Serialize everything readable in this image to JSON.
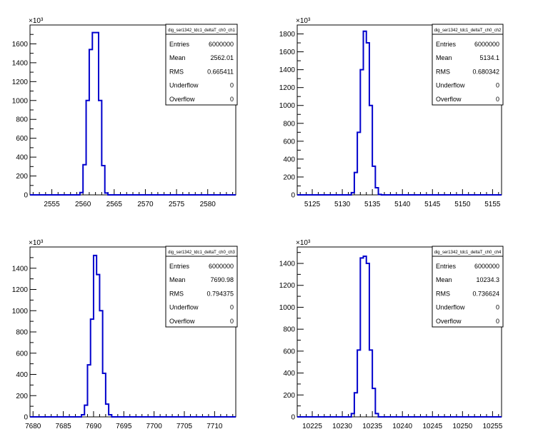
{
  "chart_data": [
    {
      "type": "histogram",
      "stats": {
        "name": "dig_ser1342_tdc1_deltaT_ch0_ch1",
        "rows": [
          {
            "label": "Entries",
            "value": "6000000"
          },
          {
            "label": "Mean",
            "value": "2562.01"
          },
          {
            "label": "RMS",
            "value": "0.665411"
          },
          {
            "label": "Underflow",
            "value": "0"
          },
          {
            "label": "Overflow",
            "value": "0"
          }
        ]
      },
      "y_exponent": "×10³",
      "xlim": [
        2551.5,
        2584.5
      ],
      "ylim": [
        0,
        1800
      ],
      "xticks": [
        2555,
        2560,
        2565,
        2570,
        2575,
        2580
      ],
      "xtick_labels": [
        "2555",
        "2560",
        "2565",
        "2570",
        "2575",
        "2580"
      ],
      "yticks": [
        0,
        200,
        400,
        600,
        800,
        1000,
        1200,
        1400,
        1600
      ],
      "ytick_labels": [
        "0",
        "200",
        "400",
        "600",
        "800",
        "1000",
        "1200",
        "1400",
        "1600"
      ],
      "bin_width": 0.5,
      "bins": [
        {
          "x": 2559.5,
          "y": 25
        },
        {
          "x": 2560.0,
          "y": 320
        },
        {
          "x": 2560.5,
          "y": 1000
        },
        {
          "x": 2561.0,
          "y": 1540
        },
        {
          "x": 2561.5,
          "y": 1720
        },
        {
          "x": 2562.0,
          "y": 1720
        },
        {
          "x": 2562.5,
          "y": 1000
        },
        {
          "x": 2563.0,
          "y": 310
        },
        {
          "x": 2563.5,
          "y": 20
        }
      ],
      "line_color": "#0000cc"
    },
    {
      "type": "histogram",
      "stats": {
        "name": "dig_ser1342_tdc1_deltaT_ch0_ch2",
        "rows": [
          {
            "label": "Entries",
            "value": "6000000"
          },
          {
            "label": "Mean",
            "value": "5134.1"
          },
          {
            "label": "RMS",
            "value": "0.680342"
          },
          {
            "label": "Underflow",
            "value": "0"
          },
          {
            "label": "Overflow",
            "value": "0"
          }
        ]
      },
      "y_exponent": "×10³",
      "xlim": [
        5122.5,
        5156.5
      ],
      "ylim": [
        0,
        1900
      ],
      "xticks": [
        5125,
        5130,
        5135,
        5140,
        5145,
        5150,
        5155
      ],
      "xtick_labels": [
        "5125",
        "5130",
        "5135",
        "5140",
        "5145",
        "5150",
        "5155"
      ],
      "yticks": [
        0,
        200,
        400,
        600,
        800,
        1000,
        1200,
        1400,
        1600,
        1800
      ],
      "ytick_labels": [
        "0",
        "200",
        "400",
        "600",
        "800",
        "1000",
        "1200",
        "1400",
        "1600",
        "1800"
      ],
      "bin_width": 0.5,
      "bins": [
        {
          "x": 5131.5,
          "y": 25
        },
        {
          "x": 5132.0,
          "y": 250
        },
        {
          "x": 5132.5,
          "y": 700
        },
        {
          "x": 5133.0,
          "y": 1400
        },
        {
          "x": 5133.5,
          "y": 1830
        },
        {
          "x": 5134.0,
          "y": 1700
        },
        {
          "x": 5134.5,
          "y": 1000
        },
        {
          "x": 5135.0,
          "y": 320
        },
        {
          "x": 5135.5,
          "y": 80
        },
        {
          "x": 5136.0,
          "y": 5
        }
      ],
      "line_color": "#0000cc"
    },
    {
      "type": "histogram",
      "stats": {
        "name": "dig_ser1342_tdc1_deltaT_ch0_ch3",
        "rows": [
          {
            "label": "Entries",
            "value": "6000000"
          },
          {
            "label": "Mean",
            "value": "7690.98"
          },
          {
            "label": "RMS",
            "value": "0.794375"
          },
          {
            "label": "Underflow",
            "value": "0"
          },
          {
            "label": "Overflow",
            "value": "0"
          }
        ]
      },
      "y_exponent": "×10³",
      "xlim": [
        7679.5,
        7713.5
      ],
      "ylim": [
        0,
        1600
      ],
      "xticks": [
        7680,
        7685,
        7690,
        7695,
        7700,
        7705,
        7710
      ],
      "xtick_labels": [
        "7680",
        "7685",
        "7690",
        "7695",
        "7700",
        "7705",
        "7710"
      ],
      "yticks": [
        0,
        200,
        400,
        600,
        800,
        1000,
        1200,
        1400
      ],
      "ytick_labels": [
        "0",
        "200",
        "400",
        "600",
        "800",
        "1000",
        "1200",
        "1400"
      ],
      "bin_width": 0.5,
      "bins": [
        {
          "x": 7688.0,
          "y": 20
        },
        {
          "x": 7688.5,
          "y": 110
        },
        {
          "x": 7689.0,
          "y": 490
        },
        {
          "x": 7689.5,
          "y": 920
        },
        {
          "x": 7690.0,
          "y": 1520
        },
        {
          "x": 7690.5,
          "y": 1340
        },
        {
          "x": 7691.0,
          "y": 1000
        },
        {
          "x": 7691.5,
          "y": 410
        },
        {
          "x": 7692.0,
          "y": 120
        },
        {
          "x": 7692.5,
          "y": 20
        }
      ],
      "line_color": "#0000cc"
    },
    {
      "type": "histogram",
      "stats": {
        "name": "dig_ser1342_tdc1_deltaT_ch0_ch4",
        "rows": [
          {
            "label": "Entries",
            "value": "6000000"
          },
          {
            "label": "Mean",
            "value": "10234.3"
          },
          {
            "label": "RMS",
            "value": "0.736624"
          },
          {
            "label": "Underflow",
            "value": "0"
          },
          {
            "label": "Overflow",
            "value": "0"
          }
        ]
      },
      "y_exponent": "×10³",
      "xlim": [
        10222.5,
        10256.5
      ],
      "ylim": [
        0,
        1550
      ],
      "xticks": [
        10225,
        10230,
        10235,
        10240,
        10245,
        10250,
        10255
      ],
      "xtick_labels": [
        "10225",
        "10230",
        "10235",
        "10240",
        "10245",
        "10250",
        "10255"
      ],
      "yticks": [
        0,
        200,
        400,
        600,
        800,
        1000,
        1200,
        1400
      ],
      "ytick_labels": [
        "0",
        "200",
        "400",
        "600",
        "800",
        "1000",
        "1200",
        "1400"
      ],
      "bin_width": 0.5,
      "bins": [
        {
          "x": 10231.5,
          "y": 30
        },
        {
          "x": 10232.0,
          "y": 220
        },
        {
          "x": 10232.5,
          "y": 610
        },
        {
          "x": 10233.0,
          "y": 1450
        },
        {
          "x": 10233.5,
          "y": 1465
        },
        {
          "x": 10234.0,
          "y": 1400
        },
        {
          "x": 10234.5,
          "y": 610
        },
        {
          "x": 10235.0,
          "y": 260
        },
        {
          "x": 10235.5,
          "y": 30
        }
      ],
      "line_color": "#0000cc"
    }
  ]
}
